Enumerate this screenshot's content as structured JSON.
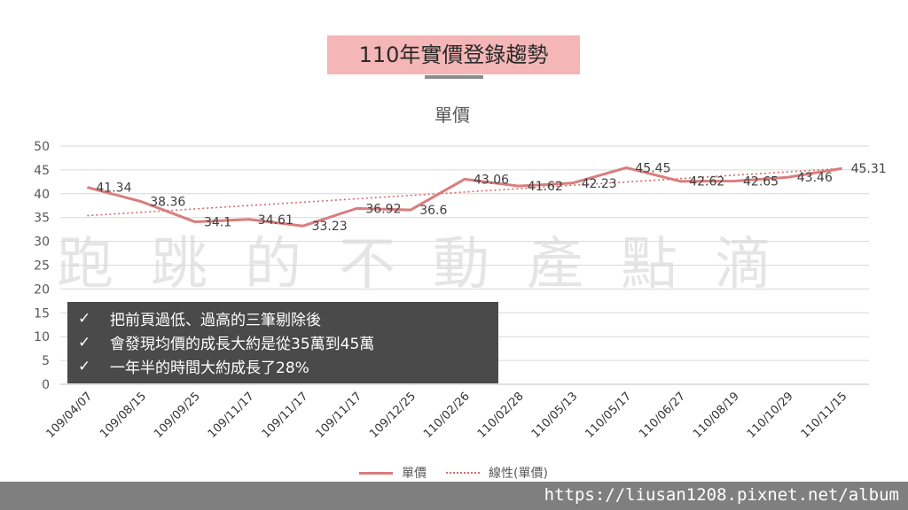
{
  "slide": {
    "title": "110年實價登錄趨勢",
    "watermark": "跑跳的不動產點滴",
    "notes": [
      "把前頁過低、過高的三筆剔除後",
      "會發現均價的成長大約是從35萬到45萬",
      "一年半的時間大約成長了28%"
    ],
    "check_glyph": "✓",
    "footer_url": "https://liusan1208.pixnet.net/album"
  },
  "chart_data": {
    "type": "line",
    "title": "單價",
    "categories": [
      "109/04/07",
      "109/08/15",
      "109/09/25",
      "109/11/17",
      "109/11/17",
      "109/11/17",
      "109/12/25",
      "110/02/26",
      "110/02/28",
      "110/05/13",
      "110/05/17",
      "110/06/27",
      "110/08/19",
      "110/10/29",
      "110/11/15"
    ],
    "series": [
      {
        "name": "單價",
        "values": [
          41.34,
          38.36,
          34.1,
          34.61,
          33.23,
          36.92,
          36.6,
          43.06,
          41.62,
          42.23,
          45.45,
          42.62,
          42.65,
          43.46,
          45.31
        ],
        "color": "#d97d7d"
      }
    ],
    "trendline": {
      "name": "線性(單價)",
      "start": 35.4,
      "end": 45.3,
      "color": "#d46a6a"
    },
    "ylim": [
      0,
      50
    ],
    "yticks": [
      0,
      5,
      10,
      15,
      20,
      25,
      30,
      35,
      40,
      45,
      50
    ],
    "grid": true,
    "legend": "bottom"
  }
}
